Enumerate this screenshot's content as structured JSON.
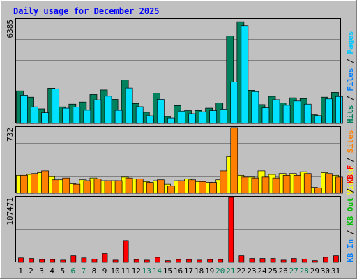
{
  "title": "Daily usage for December 2025",
  "colors": {
    "background": "#c0c0c0",
    "frame_light": "#ffffff",
    "frame_dark": "#808080",
    "plot_bg": "#c0c0c0",
    "grid": "#808080",
    "title": "#0000ff",
    "weekday": "#000000",
    "weekend": "#00805c",
    "hits": "#00805c",
    "files": "#00e0ff",
    "pages": "#00c8ff",
    "visits": "#ffff00",
    "sites": "#ff8000",
    "kbin": "#0080ff",
    "kbout": "#00c000",
    "kbf": "#ff0000",
    "separator": "#000000"
  },
  "chart_data": {
    "type": "bar",
    "x": [
      "1",
      "2",
      "3",
      "4",
      "5",
      "6",
      "7",
      "8",
      "9",
      "10",
      "11",
      "12",
      "13",
      "14",
      "15",
      "16",
      "17",
      "18",
      "19",
      "20",
      "21",
      "22",
      "23",
      "24",
      "25",
      "26",
      "27",
      "28",
      "29",
      "30",
      "31"
    ],
    "weekend_days": [
      "6",
      "7",
      "13",
      "14",
      "20",
      "21",
      "27",
      "28"
    ],
    "panels": [
      {
        "id": "requests",
        "max_label": "6385",
        "ymax": 6385,
        "legend": [
          {
            "text": "Hits",
            "color_key": "hits"
          },
          {
            "text": " / ",
            "color_key": "separator"
          },
          {
            "text": "Files",
            "color_key": "kbin"
          },
          {
            "text": " / ",
            "color_key": "separator"
          },
          {
            "text": "Pages",
            "color_key": "pages"
          }
        ],
        "series": [
          {
            "name": "Hits",
            "color_key": "hits",
            "values": [
              2005,
              1620,
              900,
              2170,
              1020,
              1190,
              1320,
              1780,
              2060,
              1480,
              2680,
              1230,
              690,
              1860,
              430,
              1100,
              790,
              800,
              940,
              1270,
              5380,
              6250,
              2040,
              1160,
              1670,
              1260,
              1580,
              1530,
              530,
              1620,
              1910
            ]
          },
          {
            "name": "Files",
            "color_key": "files",
            "values": [
              1740,
              1020,
              660,
              2130,
              940,
              1000,
              820,
              1450,
              1680,
              810,
              2180,
              1030,
              470,
              1480,
              340,
              760,
              600,
              720,
              790,
              880,
              2550,
              6010,
              1960,
              960,
              1460,
              1120,
              1380,
              1190,
              480,
              1510,
              1660
            ]
          },
          {
            "name": "Pages",
            "color_key": "pages",
            "values": [
              0,
              0,
              0,
              0,
              0,
              0,
              0,
              0,
              0,
              0,
              0,
              0,
              0,
              0,
              0,
              0,
              0,
              0,
              0,
              0,
              0,
              0,
              0,
              0,
              0,
              0,
              0,
              0,
              0,
              0,
              0
            ]
          }
        ]
      },
      {
        "id": "visitors",
        "max_label": "732",
        "ymax": 732,
        "legend": [
          {
            "text": "Visits",
            "color_key": "visits"
          },
          {
            "text": " / ",
            "color_key": "separator"
          },
          {
            "text": "Sites",
            "color_key": "sites"
          }
        ],
        "series": [
          {
            "name": "Visits",
            "color_key": "visits",
            "values": [
              200,
              210,
              230,
              185,
              150,
              105,
              150,
              170,
              140,
              140,
              180,
              160,
              130,
              140,
              100,
              140,
              160,
              130,
              120,
              150,
              410,
              200,
              180,
              250,
              210,
              220,
              220,
              240,
              65,
              230,
              200
            ]
          },
          {
            "name": "Sites",
            "color_key": "sites",
            "values": [
              200,
              220,
              250,
              150,
              170,
              100,
              140,
              160,
              140,
              140,
              170,
              160,
              120,
              150,
              80,
              140,
              150,
              130,
              120,
              250,
              732,
              180,
              170,
              180,
              170,
              200,
              200,
              220,
              60,
              220,
              180
            ]
          }
        ]
      },
      {
        "id": "traffic",
        "max_label": "107471",
        "ymax": 107471,
        "legend": [
          {
            "text": "KB In",
            "color_key": "kbin"
          },
          {
            "text": " / ",
            "color_key": "separator"
          },
          {
            "text": "KB Out",
            "color_key": "kbout"
          },
          {
            "text": " / ",
            "color_key": "separator"
          },
          {
            "text": "KB F",
            "color_key": "kbf"
          }
        ],
        "series": [
          {
            "name": "KB F",
            "color_key": "kbf",
            "values": [
              7200,
              6300,
              4500,
              4500,
              3600,
              10800,
              7200,
              5400,
              14400,
              3600,
              36000,
              4500,
              3600,
              8100,
              2700,
              4500,
              4500,
              3600,
              4500,
              4500,
              107471,
              10800,
              6300,
              6300,
              6300,
              3600,
              6300,
              5400,
              2700,
              8100,
              10800
            ]
          }
        ]
      }
    ]
  }
}
